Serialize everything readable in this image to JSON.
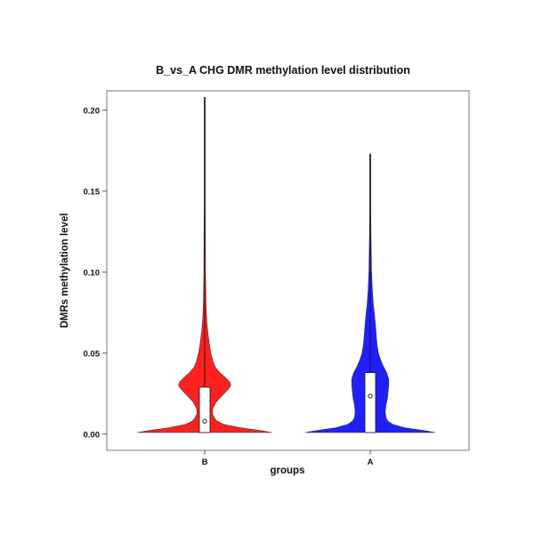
{
  "chart_data": {
    "type": "violin",
    "title": "B_vs_A  CHG  DMR methylation level  distribution",
    "xlabel": "groups",
    "ylabel": "DMRs  methylation  level",
    "ylim": [
      -0.01,
      0.212
    ],
    "yticks": [
      0.0,
      0.05,
      0.1,
      0.15,
      0.2
    ],
    "ytick_labels": [
      "0.00",
      "0.05",
      "0.10",
      "0.15",
      "0.20"
    ],
    "categories": [
      "B",
      "A"
    ],
    "grid": false,
    "legend": "none",
    "series": [
      {
        "category": "B",
        "color": "#ff2020",
        "min": 0.001,
        "q1": 0.001,
        "median": 0.008,
        "q3": 0.029,
        "max": 0.208,
        "density": [
          [
            0.001,
            0.98
          ],
          [
            0.002,
            0.85
          ],
          [
            0.004,
            0.52
          ],
          [
            0.006,
            0.28
          ],
          [
            0.008,
            0.18
          ],
          [
            0.01,
            0.14
          ],
          [
            0.013,
            0.11
          ],
          [
            0.016,
            0.12
          ],
          [
            0.02,
            0.17
          ],
          [
            0.024,
            0.26
          ],
          [
            0.028,
            0.35
          ],
          [
            0.03,
            0.38
          ],
          [
            0.032,
            0.37
          ],
          [
            0.035,
            0.3
          ],
          [
            0.038,
            0.22
          ],
          [
            0.041,
            0.16
          ],
          [
            0.045,
            0.12
          ],
          [
            0.05,
            0.09
          ],
          [
            0.055,
            0.07
          ],
          [
            0.06,
            0.055
          ],
          [
            0.065,
            0.04
          ],
          [
            0.07,
            0.03
          ],
          [
            0.08,
            0.02
          ],
          [
            0.09,
            0.015
          ],
          [
            0.1,
            0.012
          ],
          [
            0.12,
            0.01
          ],
          [
            0.14,
            0.008
          ],
          [
            0.17,
            0.006
          ],
          [
            0.208,
            0.004
          ]
        ]
      },
      {
        "category": "A",
        "color": "#2020ff",
        "min": 0.001,
        "q1": 0.001,
        "median": 0.0235,
        "q3": 0.038,
        "max": 0.173,
        "density": [
          [
            0.001,
            0.95
          ],
          [
            0.002,
            0.82
          ],
          [
            0.004,
            0.5
          ],
          [
            0.006,
            0.33
          ],
          [
            0.008,
            0.26
          ],
          [
            0.01,
            0.23
          ],
          [
            0.014,
            0.22
          ],
          [
            0.018,
            0.23
          ],
          [
            0.022,
            0.25
          ],
          [
            0.026,
            0.26
          ],
          [
            0.03,
            0.27
          ],
          [
            0.034,
            0.27
          ],
          [
            0.038,
            0.24
          ],
          [
            0.042,
            0.19
          ],
          [
            0.046,
            0.15
          ],
          [
            0.05,
            0.12
          ],
          [
            0.055,
            0.1
          ],
          [
            0.06,
            0.09
          ],
          [
            0.065,
            0.08
          ],
          [
            0.07,
            0.07
          ],
          [
            0.075,
            0.06
          ],
          [
            0.08,
            0.045
          ],
          [
            0.09,
            0.03
          ],
          [
            0.1,
            0.02
          ],
          [
            0.11,
            0.015
          ],
          [
            0.125,
            0.01
          ],
          [
            0.14,
            0.008
          ],
          [
            0.155,
            0.006
          ],
          [
            0.173,
            0.004
          ]
        ]
      }
    ]
  }
}
